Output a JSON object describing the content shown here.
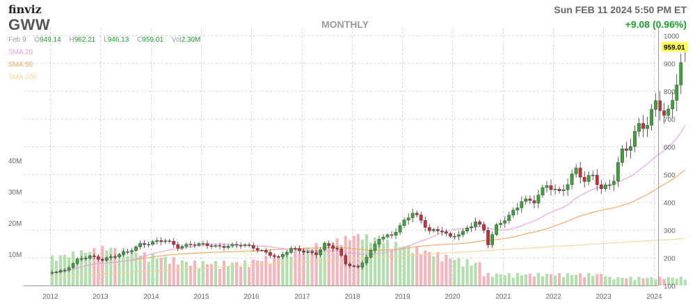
{
  "header": {
    "brand": "finviz",
    "ticker": "GWW",
    "timeframe": "MONTHLY",
    "datetime": "Sun FEB 11 2024 5:50 PM ET",
    "change": "+9.08 (0.96%)",
    "ohlc": {
      "date": "Feb 9",
      "o_label": "O",
      "o": "949.14",
      "h_label": "H",
      "h": "962.21",
      "l_label": "L",
      "l": "946.13",
      "c_label": "C",
      "c": "959.01",
      "vol_label": "Vol",
      "vol": "2.30M"
    }
  },
  "legend": {
    "sma20": "SMA 20",
    "sma50": "SMA 50",
    "sma200": "SMA 200"
  },
  "colors": {
    "up": "#3ca23c",
    "down": "#c4313a",
    "sma20": "#e8a0e0",
    "sma50": "#f3a65a",
    "sma200": "#f5d39c",
    "grid": "#d4d4d4",
    "last_price_bg": "#ffff4d"
  },
  "chart_data": {
    "type": "candlestick",
    "period": "monthly",
    "ylim": [
      100,
      1000
    ],
    "y_ticks": [
      100,
      200,
      300,
      400,
      500,
      600,
      700,
      800,
      900,
      1000
    ],
    "volume_ticks": [
      "10M",
      "20M",
      "30M",
      "40M"
    ],
    "volume_tick_values": [
      10,
      20,
      30,
      40
    ],
    "x_ticks": [
      "2012",
      "2013",
      "2014",
      "2015",
      "2016",
      "2017",
      "2018",
      "2019",
      "2020",
      "2021",
      "2022",
      "2023",
      "2024"
    ],
    "last_price": "959.01",
    "price_anchors": [
      [
        "2011-07",
        150
      ],
      [
        "2011-10",
        155
      ],
      [
        "2012-01",
        190
      ],
      [
        "2012-04",
        205
      ],
      [
        "2012-07",
        195
      ],
      [
        "2012-10",
        205
      ],
      [
        "2013-01",
        220
      ],
      [
        "2013-04",
        250
      ],
      [
        "2013-07",
        255
      ],
      [
        "2013-10",
        260
      ],
      [
        "2014-01",
        240
      ],
      [
        "2014-04",
        250
      ],
      [
        "2014-07",
        245
      ],
      [
        "2014-10",
        240
      ],
      [
        "2015-01",
        245
      ],
      [
        "2015-04",
        245
      ],
      [
        "2015-07",
        235
      ],
      [
        "2015-10",
        220
      ],
      [
        "2016-01",
        200
      ],
      [
        "2016-04",
        230
      ],
      [
        "2016-07",
        225
      ],
      [
        "2016-10",
        215
      ],
      [
        "2016-12",
        245
      ],
      [
        "2017-03",
        230
      ],
      [
        "2017-05",
        180
      ],
      [
        "2017-08",
        165
      ],
      [
        "2017-11",
        220
      ],
      [
        "2018-01",
        270
      ],
      [
        "2018-04",
        285
      ],
      [
        "2018-07",
        330
      ],
      [
        "2018-09",
        360
      ],
      [
        "2018-11",
        330
      ],
      [
        "2019-01",
        300
      ],
      [
        "2019-04",
        300
      ],
      [
        "2019-06",
        270
      ],
      [
        "2019-09",
        290
      ],
      [
        "2019-12",
        335
      ],
      [
        "2020-02",
        300
      ],
      [
        "2020-03",
        250
      ],
      [
        "2020-05",
        310
      ],
      [
        "2020-08",
        350
      ],
      [
        "2020-11",
        410
      ],
      [
        "2021-02",
        400
      ],
      [
        "2021-05",
        460
      ],
      [
        "2021-08",
        440
      ],
      [
        "2021-10",
        470
      ],
      [
        "2021-12",
        515
      ],
      [
        "2022-02",
        470
      ],
      [
        "2022-04",
        500
      ],
      [
        "2022-06",
        450
      ],
      [
        "2022-09",
        480
      ],
      [
        "2022-11",
        580
      ],
      [
        "2023-01",
        600
      ],
      [
        "2023-03",
        690
      ],
      [
        "2023-05",
        680
      ],
      [
        "2023-07",
        770
      ],
      [
        "2023-09",
        695
      ],
      [
        "2023-10",
        720
      ],
      [
        "2023-12",
        830
      ],
      [
        "2024-01",
        895
      ],
      [
        "2024-02",
        959
      ]
    ]
  }
}
